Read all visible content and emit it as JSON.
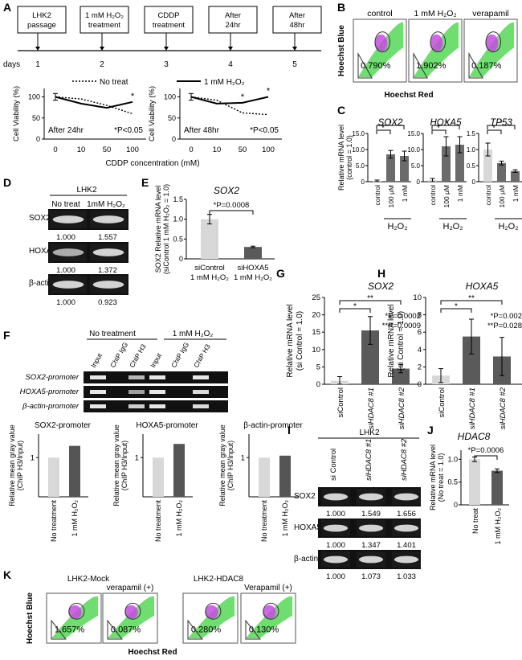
{
  "panels": {
    "A": {
      "letter": "A",
      "timeline": {
        "boxes": [
          [
            "LHK2",
            "passage"
          ],
          [
            "1 mM H₂O₂",
            "treatment"
          ],
          [
            "CDDP",
            "treatment"
          ],
          [
            "After",
            "24hr"
          ],
          [
            "After",
            "48hr"
          ]
        ],
        "days_label": "days",
        "days": [
          "1",
          "2",
          "3",
          "4",
          "5"
        ]
      },
      "legend": {
        "dotted": "No treat",
        "solid": "1 mM H₂O₂"
      },
      "ylabel": "Cell Viability (%)",
      "xlabel": "CDDP concentration (mM)",
      "yticks": [
        "0",
        "50",
        "100"
      ],
      "xticks": [
        "0",
        "10",
        "50",
        "100"
      ],
      "pnote": "*P<0.05",
      "star": "*",
      "charts": [
        {
          "note": "After 24hr",
          "no_treat": [
            100,
            95,
            80,
            60
          ],
          "h2o2": [
            100,
            84,
            74,
            88
          ],
          "stars": [
            3
          ]
        },
        {
          "note": "After 48hr",
          "no_treat": [
            100,
            92,
            62,
            58
          ],
          "h2o2": [
            100,
            84,
            86,
            100
          ],
          "stars": [
            2,
            3
          ]
        }
      ]
    },
    "B": {
      "letter": "B",
      "titles": [
        "control",
        "1 mM H₂O₂",
        "verapamil"
      ],
      "values": [
        "0.790%",
        "1.902%",
        "0.187%"
      ],
      "ylabel": "Hoechst Blue",
      "xlabel": "Hoechst Red"
    },
    "C": {
      "letter": "C",
      "ylabel": [
        "Relative mRNA level",
        "(control = 1.0)"
      ],
      "yticks": [
        "0",
        "5.0",
        "10.0",
        "15.0"
      ],
      "cats": [
        "control",
        "100 μM",
        "1 mM"
      ],
      "group": "H₂O₂",
      "star": "*",
      "charts": [
        {
          "title": "SOX2",
          "values": [
            0.2,
            8.5,
            8.0
          ],
          "errors": [
            0.3,
            1.2,
            1.5
          ]
        },
        {
          "title": "HOXA5",
          "values": [
            0.5,
            11.0,
            11.5
          ],
          "errors": [
            0.5,
            3.0,
            2.5
          ]
        },
        {
          "title": "TP53",
          "values": [
            1.0,
            0.58,
            0.33
          ],
          "errors": [
            0.2,
            0.06,
            0.04
          ],
          "ymax": 1.5,
          "yticks": [
            "0",
            "0.5",
            "1.0",
            "1.5"
          ]
        }
      ]
    },
    "D": {
      "letter": "D",
      "header": "LHK2",
      "cols": [
        "No treat",
        "1mM H₂O₂"
      ],
      "rows": [
        {
          "label": "SOX2",
          "values": [
            "1.000",
            "1.557"
          ]
        },
        {
          "label": "HOXA5",
          "values": [
            "1.000",
            "1.372"
          ]
        },
        {
          "label": "β-actin",
          "values": [
            "1.000",
            "0.923"
          ]
        }
      ]
    },
    "E": {
      "letter": "E",
      "title": "SOX2",
      "ylabel": [
        "SOX2 Relative mRNA level",
        "(siControl 1 mM H₂O₂ = 1.0)"
      ],
      "yticks": [
        "0",
        "0.5",
        "1.0",
        "1.5"
      ],
      "pval": "*P=0.0008",
      "cats": [
        [
          "siControl",
          "1 mM H₂O₂"
        ],
        [
          "siHOXA5",
          "1 mM H₂O₂"
        ]
      ],
      "values": [
        1.0,
        0.3
      ],
      "errors": [
        0.12,
        0.02
      ]
    },
    "F": {
      "letter": "F",
      "groups": [
        "No treatment",
        "1 mM H₂O₂"
      ],
      "lanes": [
        "Input",
        "ChIP IgG",
        "ChIP H3",
        "Input",
        "ChIP IgG",
        "ChIP H3"
      ],
      "rows": [
        "SOX2-promoter",
        "HOXA5-promoter",
        "β-actin-promoter"
      ],
      "ylabel": [
        "Relative mean gray value",
        "(ChIP H3/Input)"
      ],
      "ytick": "1",
      "cats": [
        "No treatment",
        "1 mM H₂O₂"
      ],
      "charts": [
        {
          "title": "SOX2-promoter",
          "values": [
            1.0,
            1.3
          ]
        },
        {
          "title": "HOXA5-promoter",
          "values": [
            1.0,
            1.35
          ]
        },
        {
          "title": "β-actin-promoter",
          "values": [
            1.0,
            1.05
          ]
        }
      ]
    },
    "G": {
      "letter": "G",
      "title": "SOX2",
      "ylabel": [
        "Relative mRNA level",
        "(si Control = 1.0)"
      ],
      "yticks": [
        "0",
        "5",
        "10",
        "15",
        "20",
        "25"
      ],
      "p1": "*P=0.0002",
      "p2": "**P=0.0009",
      "cats": [
        "siControl",
        "siHDAC8 #1",
        "siHDAC8 #2"
      ],
      "values": [
        1.0,
        15.5,
        4.5
      ],
      "errors": [
        1.2,
        4.0,
        1.2
      ]
    },
    "H": {
      "letter": "H",
      "title": "HOXA5",
      "ylabel": [
        "Relative mRNA level",
        "(si Control = 1.0)"
      ],
      "yticks": [
        "0",
        "2",
        "4",
        "6",
        "8",
        "10"
      ],
      "p1": "*P=0.002",
      "p2": "**P=0.028",
      "cats": [
        "siControl",
        "siHDAC8 #1",
        "siHDAC8 #2"
      ],
      "values": [
        1.0,
        5.5,
        3.2
      ],
      "errors": [
        0.8,
        2.0,
        2.2
      ]
    },
    "I": {
      "letter": "I",
      "header": "LHK2",
      "cols": [
        "si Control",
        "siHDAC8 #1",
        "siHDAC8 #2"
      ],
      "rows": [
        {
          "label": "SOX2",
          "values": [
            "1.000",
            "1.549",
            "1.656"
          ]
        },
        {
          "label": "HOXA5",
          "values": [
            "1.000",
            "1.347",
            "1.401"
          ]
        },
        {
          "label": "β-actin",
          "values": [
            "1.000",
            "1.073",
            "1.033"
          ]
        }
      ]
    },
    "J": {
      "letter": "J",
      "title": "HDAC8",
      "ylabel": [
        "Relative mRNA level",
        "(No treat = 1.0)"
      ],
      "yticks": [
        "0",
        "0.5",
        "1.0"
      ],
      "pval": "*P=0.0006",
      "cats": [
        "No treat",
        "1 mM H₂O₂"
      ],
      "values": [
        1.0,
        0.75
      ],
      "errors": [
        0.05,
        0.04
      ]
    },
    "K": {
      "letter": "K",
      "groups": [
        "LHK2-Mock",
        "LHK2-HDAC8"
      ],
      "titles": [
        "",
        "verapamil (+)",
        "",
        "Verapamil (+)"
      ],
      "values": [
        "1.657%",
        "0.087%",
        "0.280%",
        "0.130%"
      ],
      "ylabel": "Hoechst  Blue",
      "xlabel": "Hoechst  Red"
    }
  }
}
